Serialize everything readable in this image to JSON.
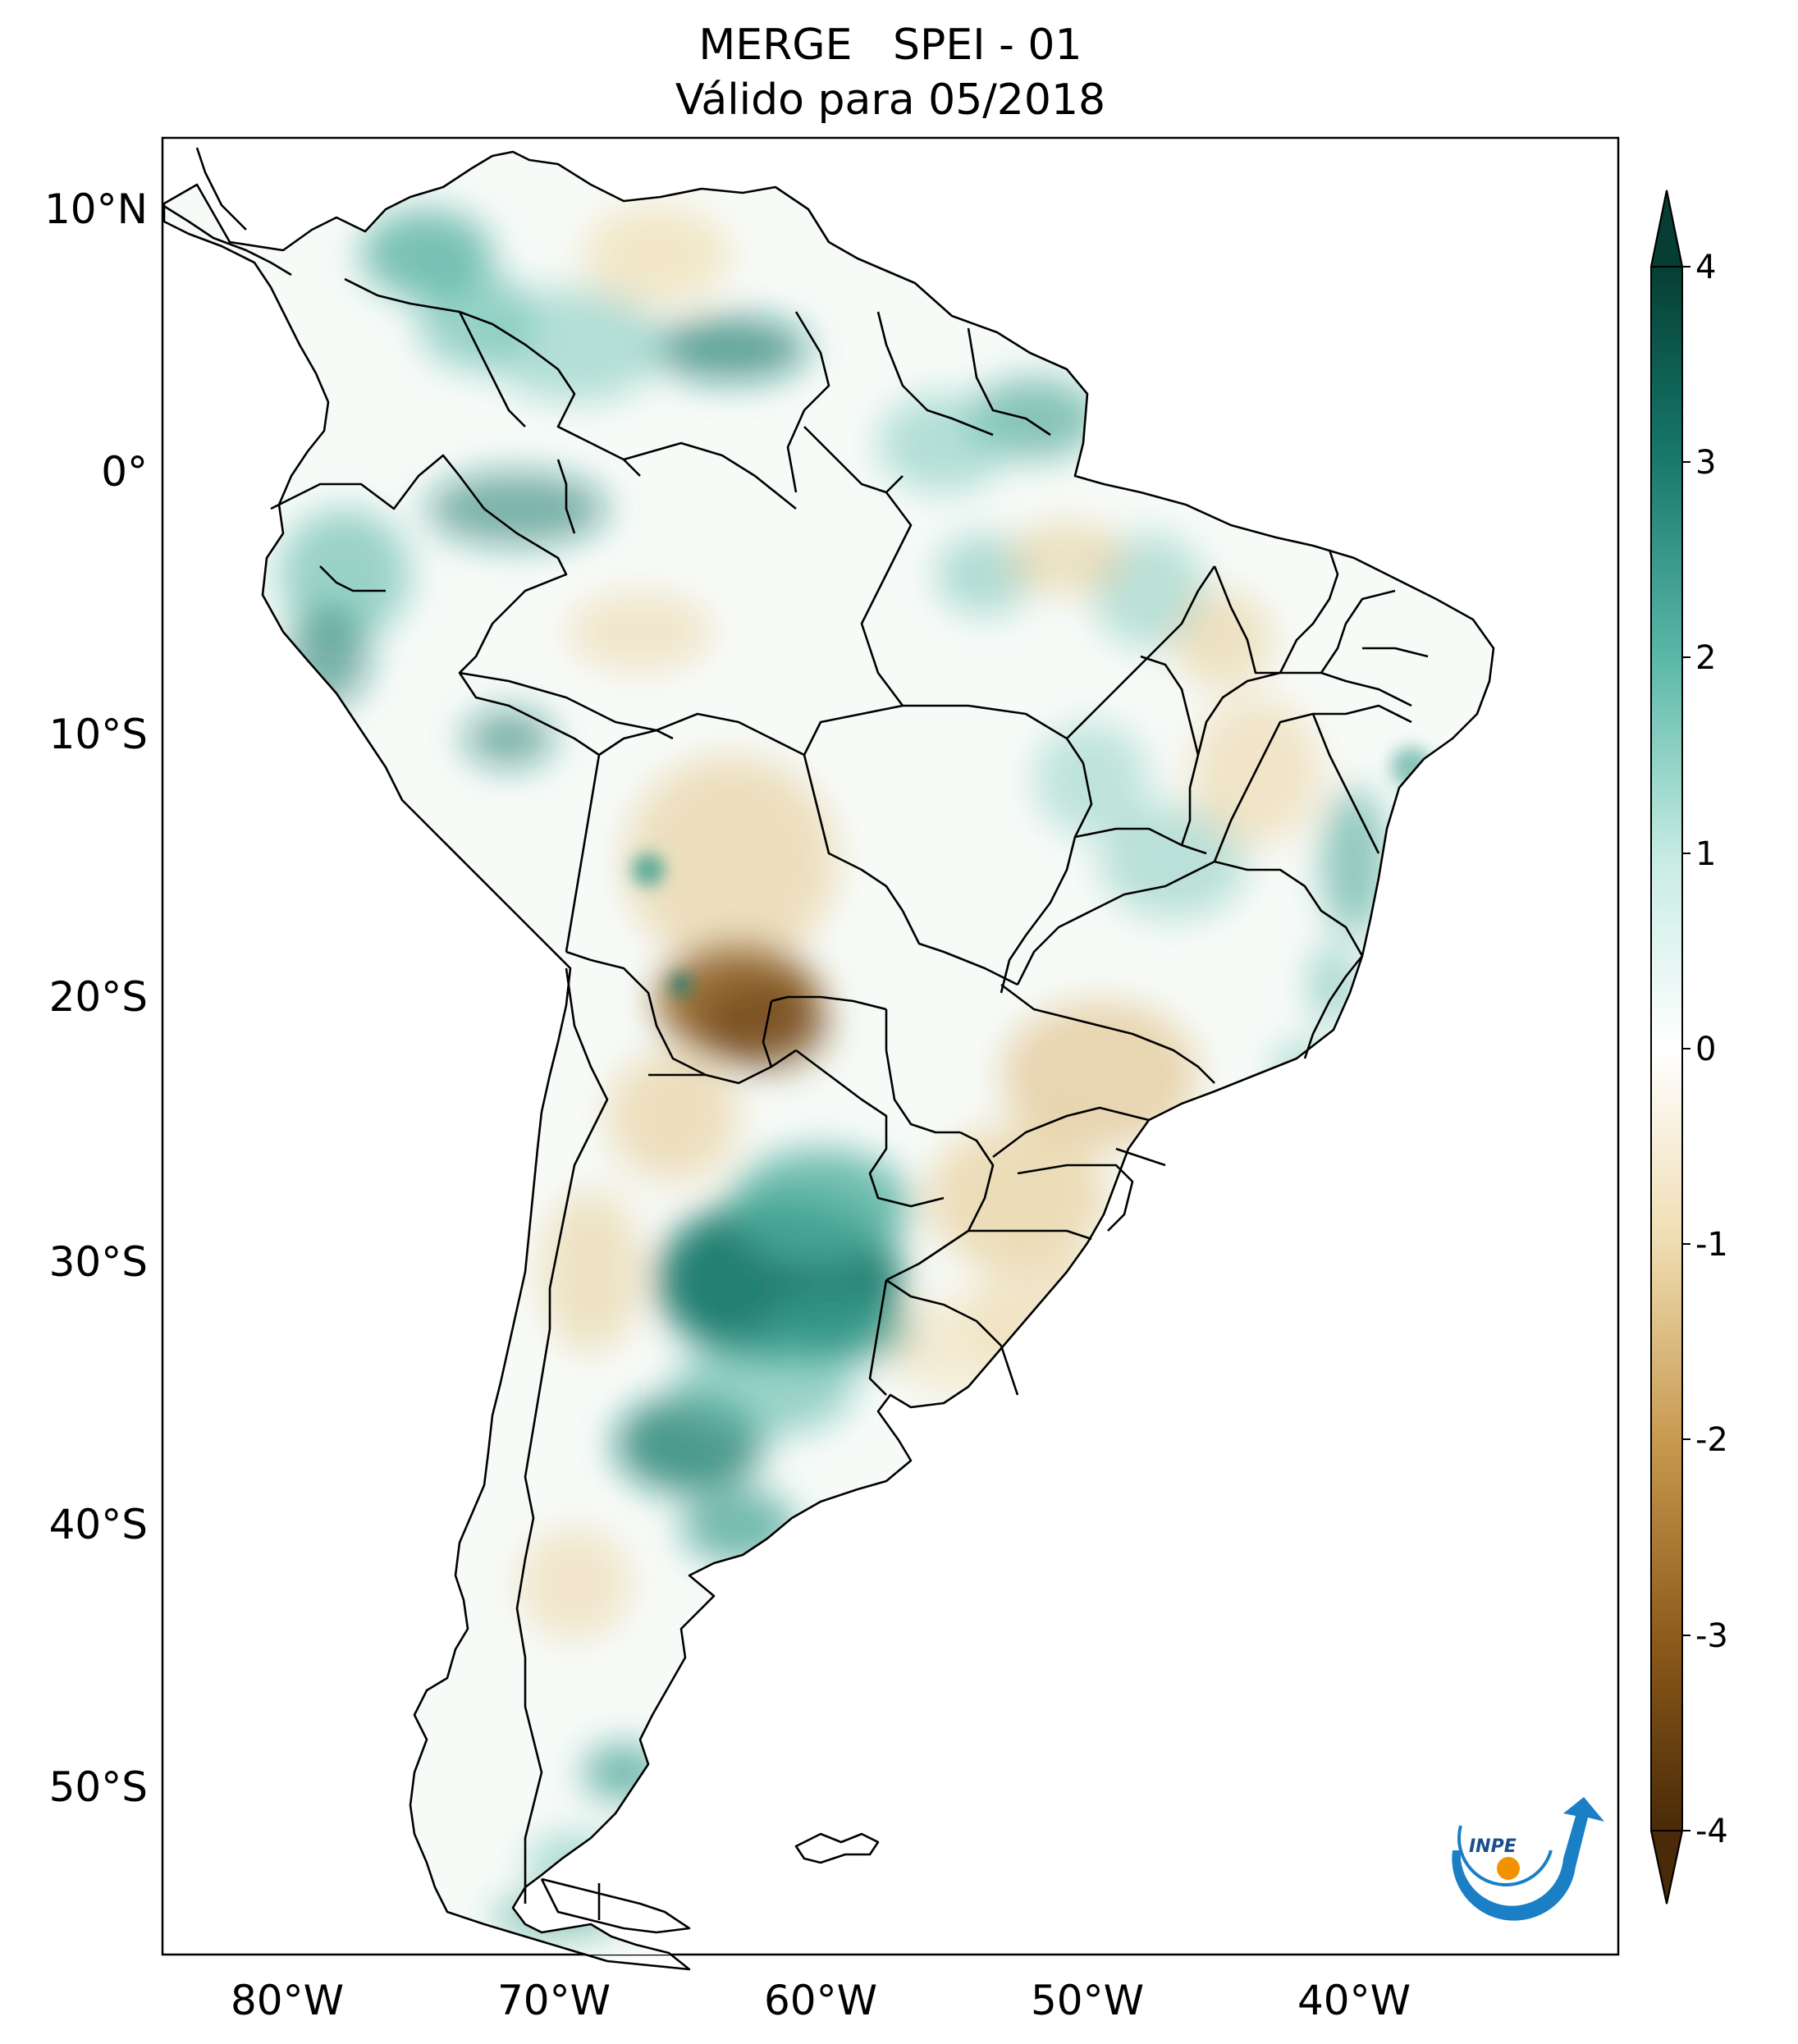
{
  "header": {
    "title": "MERGE   SPEI - 01",
    "subtitle": "Válido para 05/2018"
  },
  "map": {
    "lon_labels": [
      "80°W",
      "70°W",
      "60°W",
      "50°W",
      "40°W"
    ],
    "lat_labels": [
      "10°N",
      "0°",
      "10°S",
      "20°S",
      "30°S",
      "40°S",
      "50°S"
    ]
  },
  "colorbar": {
    "labels": [
      "4",
      "3",
      "2",
      "1",
      "0",
      "-1",
      "-2",
      "-3",
      "-4"
    ],
    "range": [
      -4,
      4
    ],
    "colors": {
      "dry_extreme": "#4a2a08",
      "dry_strong": "#8c5a1a",
      "dry_mid": "#c89a50",
      "dry_light": "#f0deb4",
      "neutral": "#ffffff",
      "wet_light": "#c8ece4",
      "wet_mid": "#5ab8a8",
      "wet_strong": "#16786a",
      "wet_extreme": "#063e34"
    }
  },
  "logo": {
    "text": "INPE",
    "primary_color": "#1a7fc4",
    "accent_color": "#f39200"
  }
}
